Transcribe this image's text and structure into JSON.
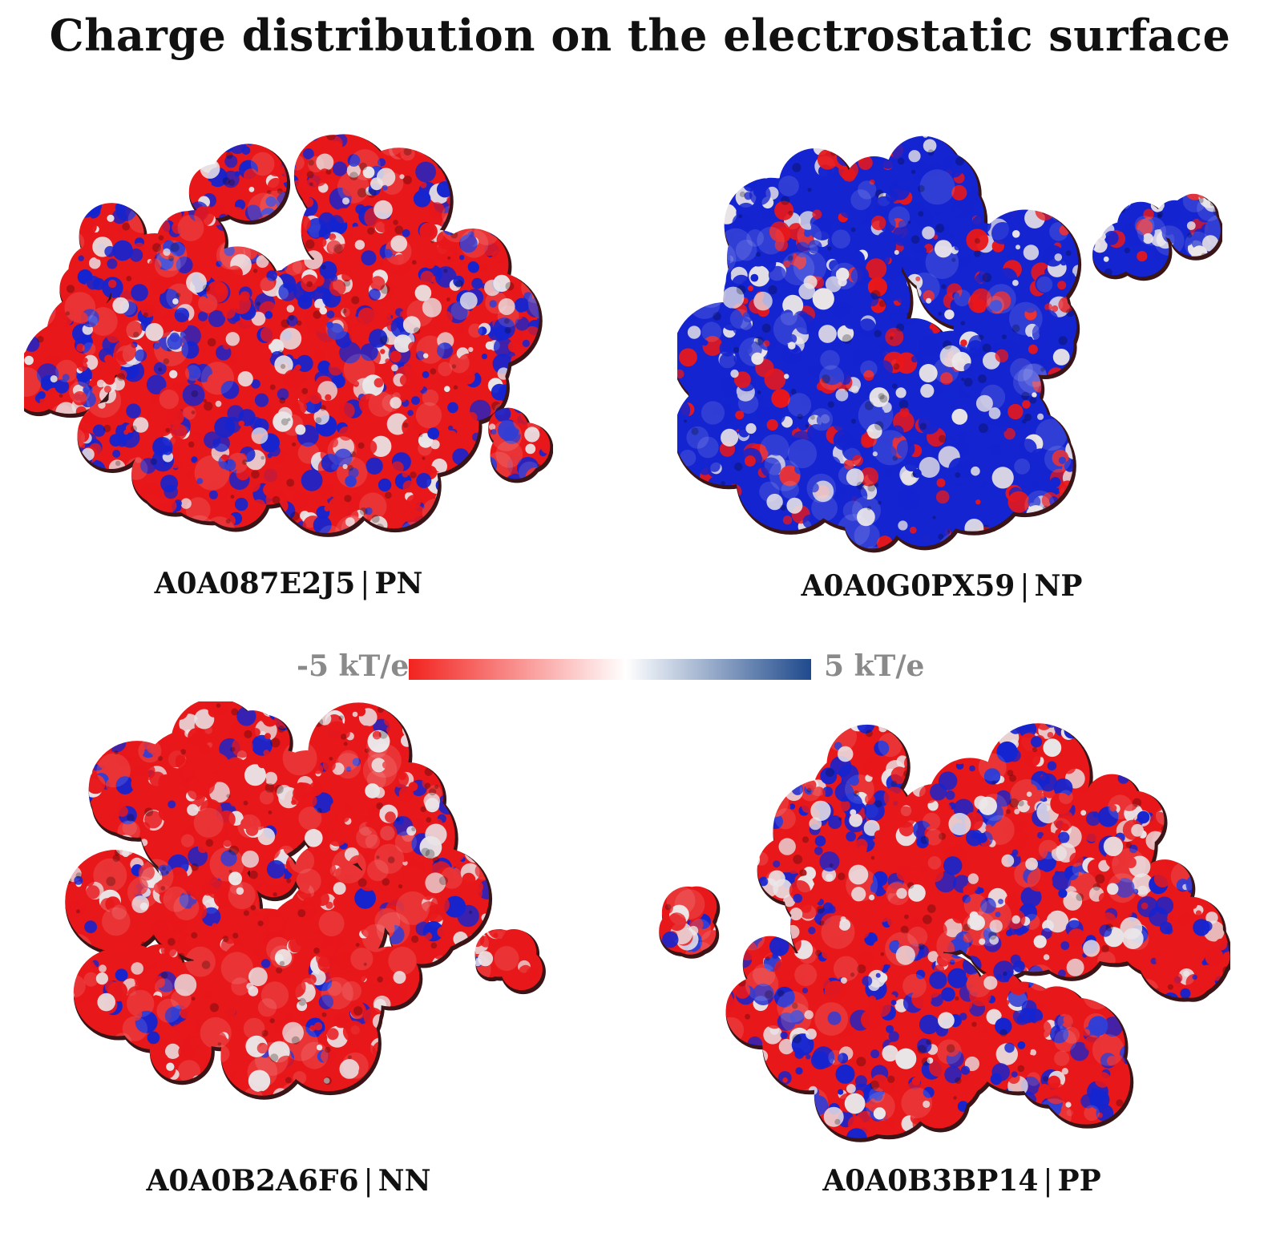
{
  "title": "Charge distribution on the electrostatic surface",
  "colorbar": {
    "min_label": "-5 kT/e",
    "max_label": "5 kT/e",
    "negative_color": "#f2231f",
    "neutral_color": "#ffffff",
    "positive_color": "#1f4a8c"
  },
  "surface_colors": {
    "negative": "#e8171a",
    "neutral": "#e9e4e6",
    "positive": "#1424d0"
  },
  "panels": [
    {
      "id": "A0A087E2J5",
      "type": "PN",
      "blue_fraction": 0.35,
      "red_fraction": 0.5
    },
    {
      "id": "A0A0G0PX59",
      "type": "NP",
      "blue_fraction": 0.65,
      "red_fraction": 0.2
    },
    {
      "id": "A0A0B2A6F6",
      "type": "NN",
      "blue_fraction": 0.1,
      "red_fraction": 0.75
    },
    {
      "id": "A0A0B3BP14",
      "type": "PP",
      "blue_fraction": 0.35,
      "red_fraction": 0.45
    }
  ]
}
